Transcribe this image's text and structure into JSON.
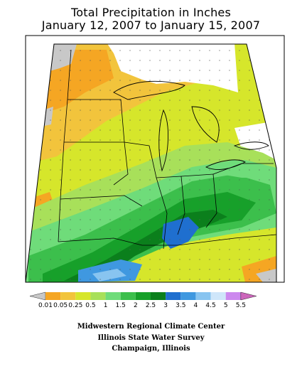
{
  "title": {
    "line1": "Total Precipitation in Inches",
    "line2": "January 12, 2007 to January 15, 2007"
  },
  "legend": {
    "bins": [
      {
        "label": "0.01",
        "color": "#c8c8c8"
      },
      {
        "label": "0.05",
        "color": "#f5a623"
      },
      {
        "label": "0.25",
        "color": "#f2c43c"
      },
      {
        "label": "0.5",
        "color": "#d6e62b"
      },
      {
        "label": "1",
        "color": "#a8e05a"
      },
      {
        "label": "1.5",
        "color": "#6fdc7a"
      },
      {
        "label": "2",
        "color": "#3cbf4c"
      },
      {
        "label": "2.5",
        "color": "#17a02a"
      },
      {
        "label": "3",
        "color": "#0b7f1c"
      },
      {
        "label": "3.5",
        "color": "#1f6fcf"
      },
      {
        "label": "4",
        "color": "#3f98e0"
      },
      {
        "label": "4.5",
        "color": "#88c4f0"
      },
      {
        "label": "5",
        "color": "#cfe6fa"
      },
      {
        "label": "5.5",
        "color": "#cc88ee"
      }
    ],
    "end_color_low": "#c8c8c8",
    "end_color_high": "#cc66bb"
  },
  "credits": {
    "line1": "Midwestern Regional Climate Center",
    "line2": "Illinois State Water Survey",
    "line3": "Champaign, Illinois"
  }
}
